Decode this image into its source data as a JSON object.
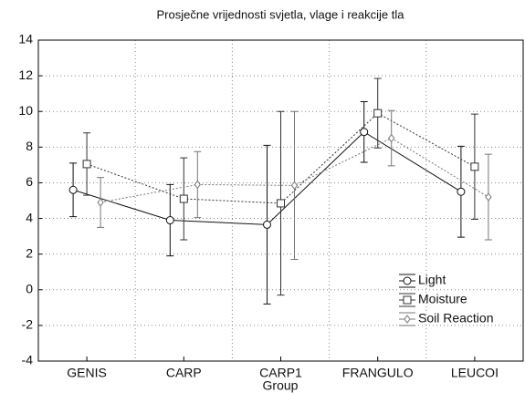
{
  "chart_data": {
    "type": "line",
    "title": "Prosječne vrijednosti svjetla, vlage i reakcije tla",
    "xlabel": "Group",
    "categories": [
      "GENIS",
      "CARP",
      "CARP1",
      "FRANGULO",
      "LEUCOI"
    ],
    "ylim": [
      -4,
      14
    ],
    "yticks": [
      -4,
      -2,
      0,
      2,
      4,
      6,
      8,
      10,
      12,
      14
    ],
    "grid": true,
    "legend": "lower right",
    "series": [
      {
        "name": "Light",
        "color": "#111111",
        "linestyle": "solid",
        "marker": "circle",
        "values": [
          5.6,
          3.9,
          3.65,
          8.85,
          5.5
        ],
        "errors": [
          1.5,
          2.0,
          4.45,
          1.7,
          2.55
        ]
      },
      {
        "name": "Moisture",
        "color": "#333333",
        "linestyle": "dotted",
        "marker": "square",
        "values": [
          7.05,
          5.1,
          4.85,
          9.9,
          6.9
        ],
        "errors": [
          1.75,
          2.3,
          5.15,
          1.95,
          2.95
        ]
      },
      {
        "name": "Soil Reaction",
        "color": "#777777",
        "linestyle": "dotted",
        "marker": "diamond",
        "values": [
          4.9,
          5.9,
          5.85,
          8.5,
          5.2
        ],
        "errors": [
          1.4,
          1.85,
          4.15,
          1.55,
          2.4
        ]
      }
    ]
  }
}
